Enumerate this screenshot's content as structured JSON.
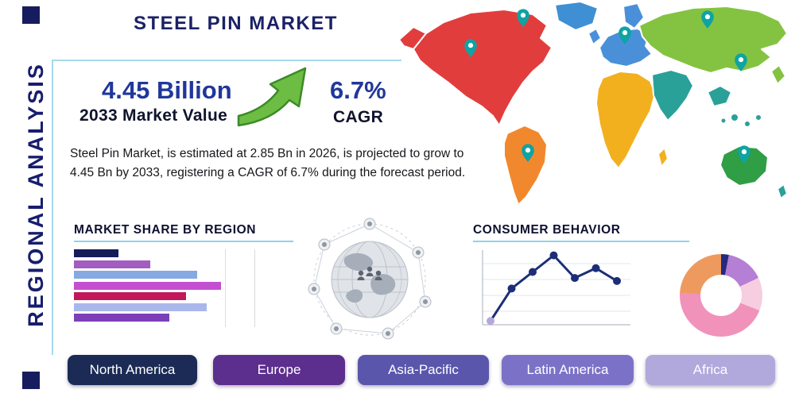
{
  "title": "STEEL PIN MARKET",
  "side_label": "REGIONAL ANALYSIS",
  "stats": {
    "value": "4.45 Billion",
    "value_label": "2033 Market Value",
    "cagr": "6.7%",
    "cagr_label": "CAGR",
    "description": "Steel Pin Market, is estimated at 2.85 Bn in 2026, is projected to grow to 4.45 Bn by 2033, registering a CAGR of 6.7% during the forecast period."
  },
  "sections": {
    "market_share_heading": "MARKET SHARE BY REGION",
    "consumer_behavior_heading": "CONSUMER BEHAVIOR"
  },
  "region_buttons": [
    {
      "label": "North America",
      "color": "#1b2b55"
    },
    {
      "label": "Europe",
      "color": "#5c2e8e"
    },
    {
      "label": "Asia-Pacific",
      "color": "#5956ac"
    },
    {
      "label": "Latin America",
      "color": "#7b72c8"
    },
    {
      "label": "Africa",
      "color": "#b1a8dc"
    }
  ],
  "icons": {
    "growth_arrow": "up-right-trend-arrow",
    "map_pin": "location-pin",
    "globe_network": "connected-globe-illustration"
  },
  "colors": {
    "accent_navy": "#171d6e",
    "stat_blue": "#20379b",
    "box_border": "#a5dbeb",
    "heading_underline": "#8fd4e8",
    "arrow_green": "#6dbd45"
  },
  "map": {
    "colors": {
      "north_america": "#e23d3d",
      "greenland": "#3f8fd4",
      "south_america": "#f2882d",
      "europe": "#4a90d9",
      "africa": "#f2b01e",
      "asia": "#84c341",
      "india": "#2aa198",
      "southeast_asia": "#2aa198",
      "australia": "#2f9e44",
      "pin": "#0fa3a3"
    }
  },
  "chart_data": [
    {
      "type": "bar",
      "orientation": "horizontal",
      "title": "MARKET SHARE BY REGION",
      "values": [
        30,
        52,
        84,
        100,
        76,
        90,
        65
      ],
      "colors": [
        "#161c5a",
        "#a35cc0",
        "#85a9e0",
        "#c44fd0",
        "#c2185b",
        "#a9b7ea",
        "#7c3fb8"
      ],
      "note": "Unlabeled horizontal bars; values are relative widths (max = 100).",
      "grid": true,
      "legend": false
    },
    {
      "type": "line",
      "title": "CONSUMER BEHAVIOR",
      "x": [
        1,
        2,
        3,
        4,
        5,
        6,
        7
      ],
      "values": [
        5,
        48,
        70,
        92,
        62,
        75,
        58
      ],
      "line_color": "#1c2e78",
      "first_marker_color": "#b5a6e0",
      "note": "Unlabeled trend line; values are relative heights (0-100).",
      "grid": true,
      "legend": false
    },
    {
      "type": "pie",
      "donut": true,
      "slices": [
        {
          "color": "#252a7e",
          "value": 3
        },
        {
          "color": "#b47fd4",
          "value": 15
        },
        {
          "color": "#f7cde0",
          "value": 13
        },
        {
          "color": "#f192bb",
          "value": 45
        },
        {
          "color": "#ee9a5f",
          "value": 24
        }
      ],
      "note": "Unlabeled donut; values are estimated percent share."
    }
  ]
}
